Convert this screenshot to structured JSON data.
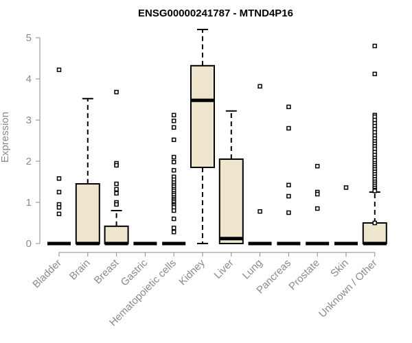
{
  "chart_data": {
    "type": "boxplot",
    "title": "ENSG00000241787 - MTND4P16",
    "xlabel": "",
    "ylabel": "Expression",
    "ylim": [
      0,
      5.2
    ],
    "yticks": [
      0,
      1,
      2,
      3,
      4,
      5
    ],
    "grid": false,
    "colors": {
      "box_fill": "#ede6cc",
      "stroke": "#000000",
      "axis": "#8a8a8a",
      "text": "#8a8a8a"
    },
    "categories": [
      "Bladder",
      "Brain",
      "Breast",
      "Gastric",
      "Hematopoietic cells",
      "Kidney",
      "Liver",
      "Lung",
      "Pancreas",
      "Prostate",
      "Skin",
      "Unknown / Other"
    ],
    "boxes": [
      {
        "q1": 0,
        "median": 0,
        "q3": 0,
        "whisker_low": 0,
        "whisker_high": 0,
        "outliers": [
          4.22,
          1.58,
          1.25,
          0.95,
          0.88,
          0.72
        ]
      },
      {
        "q1": 0,
        "median": 0,
        "q3": 1.45,
        "whisker_low": 0,
        "whisker_high": 3.52,
        "outliers": []
      },
      {
        "q1": 0,
        "median": 0,
        "q3": 0.42,
        "whisker_low": 0,
        "whisker_high": 0.8,
        "outliers": [
          3.68,
          1.95,
          1.9,
          1.45,
          1.32,
          1.22,
          1.0,
          0.95
        ]
      },
      {
        "q1": 0,
        "median": 0,
        "q3": 0,
        "whisker_low": 0,
        "whisker_high": 0,
        "outliers": []
      },
      {
        "q1": 0,
        "median": 0,
        "q3": 0,
        "whisker_low": 0,
        "whisker_high": 0,
        "outliers": [
          3.12,
          2.98,
          2.82,
          2.52,
          2.1,
          1.98,
          1.78,
          1.62,
          1.55,
          1.48,
          1.42,
          1.38,
          1.32,
          1.28,
          1.22,
          1.18,
          1.12,
          1.08,
          1.04,
          1.0,
          0.95,
          0.92,
          0.88,
          0.8,
          0.6,
          0.38,
          0.28
        ]
      },
      {
        "q1": 1.85,
        "median": 3.48,
        "q3": 4.32,
        "whisker_low": 0,
        "whisker_high": 5.2,
        "outliers": []
      },
      {
        "q1": 0,
        "median": 0.12,
        "q3": 2.05,
        "whisker_low": 0,
        "whisker_high": 3.22,
        "outliers": []
      },
      {
        "q1": 0,
        "median": 0,
        "q3": 0,
        "whisker_low": 0,
        "whisker_high": 0,
        "outliers": [
          3.82,
          0.78
        ]
      },
      {
        "q1": 0,
        "median": 0,
        "q3": 0,
        "whisker_low": 0,
        "whisker_high": 0,
        "outliers": [
          3.32,
          2.8,
          1.42,
          1.15,
          0.75
        ]
      },
      {
        "q1": 0,
        "median": 0,
        "q3": 0,
        "whisker_low": 0,
        "whisker_high": 0,
        "outliers": [
          1.88,
          1.25,
          1.2,
          0.85
        ]
      },
      {
        "q1": 0,
        "median": 0,
        "q3": 0,
        "whisker_low": 0,
        "whisker_high": 0,
        "outliers": [
          1.36
        ]
      },
      {
        "q1": 0,
        "median": 0,
        "q3": 0.5,
        "whisker_low": 0,
        "whisker_high": 1.25,
        "outliers": [
          4.8,
          4.12,
          3.12,
          3.08,
          3.0,
          2.92,
          2.85,
          2.78,
          2.7,
          2.62,
          2.55,
          2.48,
          2.42,
          2.36,
          2.3,
          2.22,
          2.15,
          2.08,
          2.02,
          1.95,
          1.9,
          1.85,
          1.8,
          1.74,
          1.68,
          1.62,
          1.56,
          1.5,
          1.45,
          1.4,
          1.35,
          1.3,
          1.28,
          0.5
        ]
      }
    ]
  }
}
